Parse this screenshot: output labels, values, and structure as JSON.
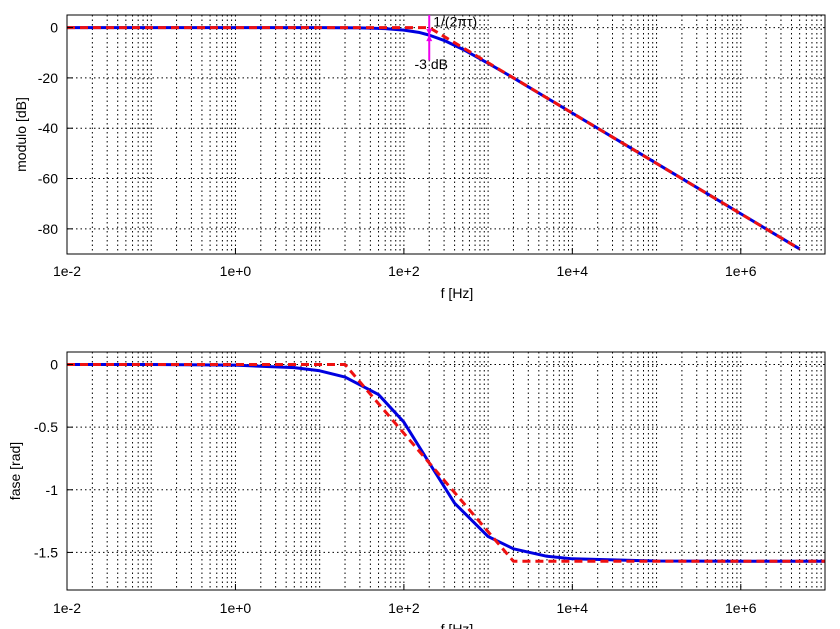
{
  "colors": {
    "exact": "#0000e0",
    "asymptote": "#ee1111",
    "marker": "#ee00ee",
    "grid": "#000000",
    "frame": "#000000"
  },
  "chart_data": [
    {
      "type": "line",
      "id": "magnitude",
      "xscale": "log",
      "xlim": [
        0.01,
        10000000
      ],
      "ylim": [
        -90,
        5
      ],
      "grid": true,
      "xlabel": "f [Hz]",
      "ylabel": "modulo [dB]",
      "xticks": [
        {
          "value": 0.01,
          "label": "1e-2"
        },
        {
          "value": 1,
          "label": "1e+0"
        },
        {
          "value": 100,
          "label": "1e+2"
        },
        {
          "value": 10000,
          "label": "1e+4"
        },
        {
          "value": 1000000,
          "label": "1e+6"
        }
      ],
      "yticks": [
        {
          "value": 0,
          "label": "0"
        },
        {
          "value": -20,
          "label": "-20"
        },
        {
          "value": -40,
          "label": "-40"
        },
        {
          "value": -60,
          "label": "-60"
        },
        {
          "value": -80,
          "label": "-80"
        }
      ],
      "corner_frequency": 200,
      "series": [
        {
          "style": "solid",
          "color_key": "exact",
          "x": [
            0.01,
            0.1,
            1,
            10,
            30,
            60,
            100,
            150,
            200,
            300,
            500,
            1000,
            2000,
            5000,
            10000,
            100000,
            1000000,
            5000000
          ],
          "y": [
            0,
            0,
            0,
            0,
            -0.1,
            -0.4,
            -1.0,
            -1.9,
            -3.0,
            -5.1,
            -8.6,
            -14.2,
            -20.0,
            -28.0,
            -34.0,
            -54.0,
            -74.0,
            -88.0
          ]
        },
        {
          "style": "dashed",
          "color_key": "asymptote",
          "x": [
            0.01,
            200,
            5000000
          ],
          "y": [
            0,
            0,
            -88.0
          ]
        }
      ],
      "annotations": [
        {
          "text": "1/(2πτ)",
          "x": 200,
          "y": 2.5
        },
        {
          "text": "-3 dB",
          "x": 200,
          "y": -14.5
        }
      ]
    },
    {
      "type": "line",
      "id": "phase",
      "xscale": "log",
      "xlim": [
        0.01,
        10000000
      ],
      "ylim": [
        -1.8,
        0.1
      ],
      "grid": true,
      "xlabel": "f [Hz]",
      "ylabel": "fase [rad]",
      "xticks": [
        {
          "value": 0.01,
          "label": "1e-2"
        },
        {
          "value": 1,
          "label": "1e+0"
        },
        {
          "value": 100,
          "label": "1e+2"
        },
        {
          "value": 10000,
          "label": "1e+4"
        },
        {
          "value": 1000000,
          "label": "1e+6"
        }
      ],
      "yticks": [
        {
          "value": 0,
          "label": "0"
        },
        {
          "value": -0.5,
          "label": "-0.5"
        },
        {
          "value": -1,
          "label": "-1"
        },
        {
          "value": -1.5,
          "label": "-1.5"
        }
      ],
      "series": [
        {
          "style": "solid",
          "color_key": "exact",
          "x": [
            0.01,
            0.1,
            1,
            5,
            10,
            20,
            50,
            100,
            200,
            400,
            1000,
            2000,
            5000,
            10000,
            100000,
            1000000,
            10000000
          ],
          "y": [
            0,
            0,
            -0.005,
            -0.025,
            -0.05,
            -0.1,
            -0.24,
            -0.46,
            -0.785,
            -1.107,
            -1.373,
            -1.471,
            -1.531,
            -1.551,
            -1.569,
            -1.571,
            -1.571
          ]
        },
        {
          "style": "dashed",
          "color_key": "asymptote",
          "x": [
            0.01,
            20,
            2000,
            10000000
          ],
          "y": [
            0,
            0,
            -1.571,
            -1.571
          ]
        }
      ]
    }
  ]
}
